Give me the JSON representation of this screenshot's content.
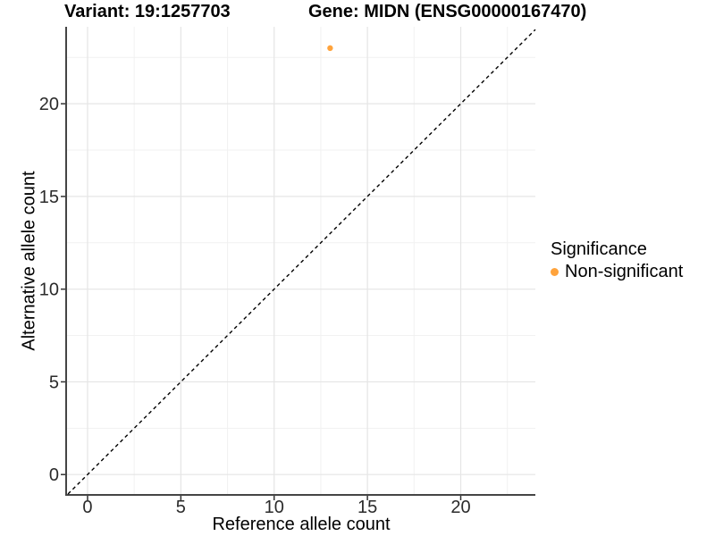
{
  "chart_data": {
    "type": "scatter",
    "title_variant": "Variant: 19:1257703",
    "title_gene": "Gene: MIDN (ENSG00000167470)",
    "xlabel": "Reference allele count",
    "ylabel": "Alternative allele count",
    "xlim": [
      -1.1,
      24.0
    ],
    "ylim": [
      -1.05,
      24.15
    ],
    "x_ticks": [
      0,
      5,
      10,
      15,
      20
    ],
    "y_ticks": [
      0,
      5,
      10,
      15,
      20
    ],
    "x_minor": [
      2.5,
      7.5,
      12.5,
      17.5,
      22.5
    ],
    "y_minor": [
      2.5,
      7.5,
      12.5,
      17.5,
      22.5
    ],
    "grid": "major+minor",
    "reference_line": {
      "type": "identity",
      "equation": "y = x",
      "style": "dashed",
      "color": "#000000"
    },
    "series": [
      {
        "name": "Non-significant",
        "color": "#FFA33C",
        "marker": "circle",
        "points": [
          {
            "x": 13,
            "y": 23
          }
        ]
      }
    ],
    "legend": {
      "title": "Significance",
      "position": "right",
      "items": [
        {
          "label": "Non-significant",
          "color": "#FFA33C"
        }
      ]
    }
  }
}
